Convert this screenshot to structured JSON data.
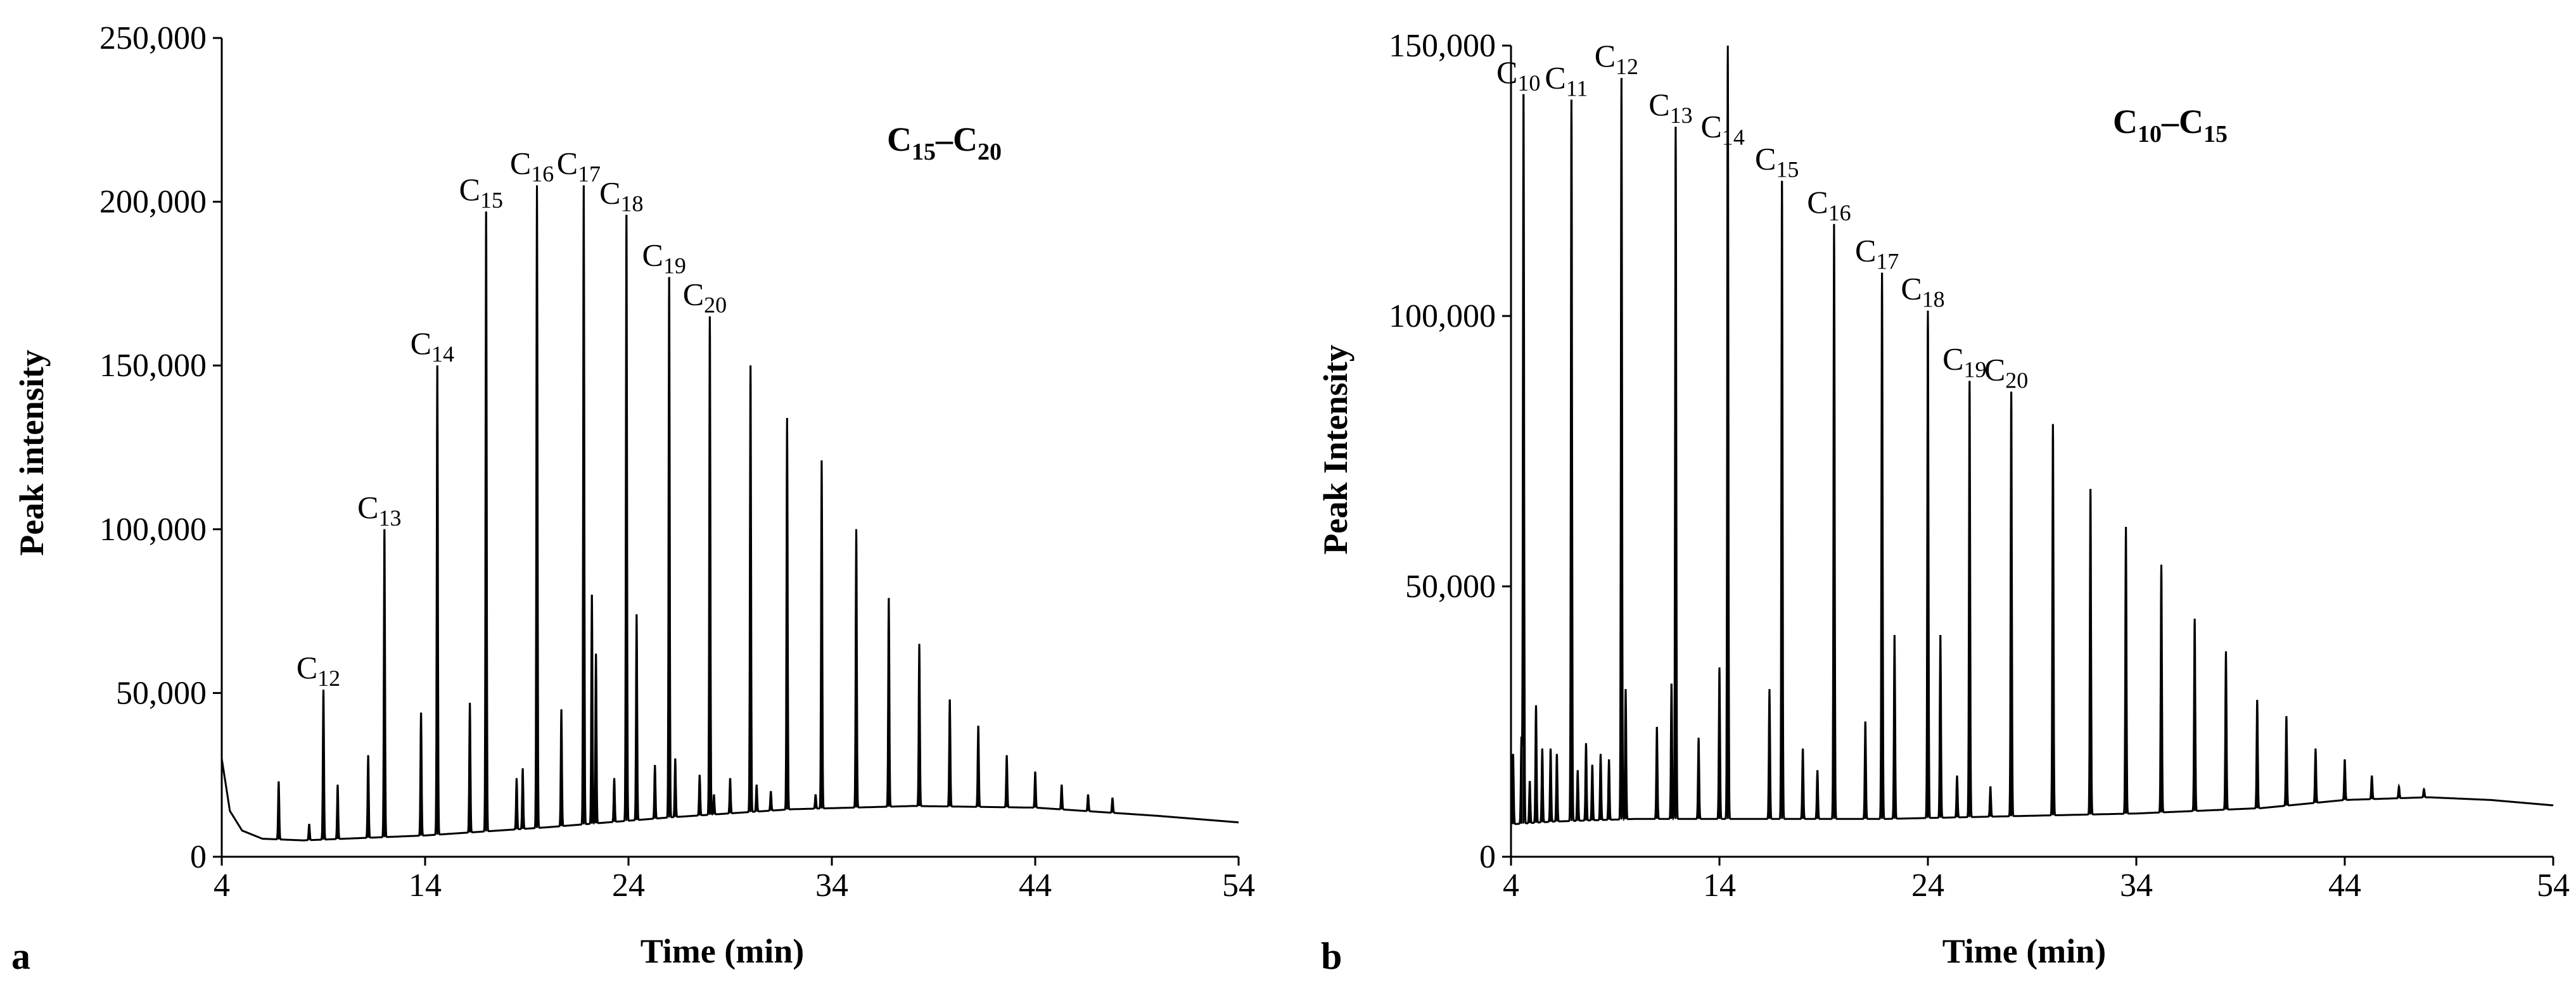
{
  "chart_data": [
    {
      "type": "line",
      "panel_label": "a",
      "xlabel": "Time (min)",
      "ylabel": "Peak intensity",
      "xlim": [
        4,
        54
      ],
      "ylim": [
        0,
        250000
      ],
      "x_ticks": [
        "4",
        "14",
        "24",
        "34",
        "44",
        "54"
      ],
      "y_ticks": [
        "0",
        "50,000",
        "100,000",
        "150,000",
        "200,000",
        "250,000"
      ],
      "annotation": {
        "text": "C",
        "sub1": "15",
        "dash": "–",
        "text2": "C",
        "sub2": "20"
      },
      "baseline": [
        [
          4,
          30000
        ],
        [
          4.4,
          14000
        ],
        [
          5,
          8000
        ],
        [
          6,
          5500
        ],
        [
          8,
          5000
        ],
        [
          10,
          5500
        ],
        [
          14,
          6500
        ],
        [
          20,
          9000
        ],
        [
          26,
          12000
        ],
        [
          32,
          14500
        ],
        [
          38,
          15500
        ],
        [
          44,
          15000
        ],
        [
          50,
          12500
        ],
        [
          54,
          10500
        ]
      ],
      "peaks": [
        {
          "x": 6.8,
          "y": 23000
        },
        {
          "x": 8.3,
          "y": 10000
        },
        {
          "x": 9.7,
          "y": 22000
        },
        {
          "x": 11.2,
          "y": 31000
        },
        {
          "x": 13.8,
          "y": 44000
        },
        {
          "x": 16.2,
          "y": 47000
        },
        {
          "x": 18.5,
          "y": 24000
        },
        {
          "x": 18.8,
          "y": 27000
        },
        {
          "x": 20.7,
          "y": 45000
        },
        {
          "x": 22.2,
          "y": 80000
        },
        {
          "x": 22.4,
          "y": 62000
        },
        {
          "x": 23.3,
          "y": 24000
        },
        {
          "x": 24.4,
          "y": 74000
        },
        {
          "x": 25.3,
          "y": 28000
        },
        {
          "x": 26.3,
          "y": 30000
        },
        {
          "x": 27.5,
          "y": 25000
        },
        {
          "x": 29.0,
          "y": 24000
        },
        {
          "x": 30.3,
          "y": 22000
        },
        {
          "x": 28.2,
          "y": 19000
        },
        {
          "x": 31.0,
          "y": 20000
        },
        {
          "x": 33.2,
          "y": 19000
        },
        {
          "x": 9.0,
          "y": 51000
        },
        {
          "x": 12.0,
          "y": 100000
        },
        {
          "x": 14.6,
          "y": 150000
        },
        {
          "x": 17.0,
          "y": 197000
        },
        {
          "x": 19.5,
          "y": 205000
        },
        {
          "x": 21.8,
          "y": 205000
        },
        {
          "x": 23.9,
          "y": 196000
        },
        {
          "x": 26.0,
          "y": 177000
        },
        {
          "x": 28.0,
          "y": 165000
        },
        {
          "x": 30.0,
          "y": 150000
        },
        {
          "x": 31.8,
          "y": 134000
        },
        {
          "x": 33.5,
          "y": 121000
        },
        {
          "x": 35.2,
          "y": 100000
        },
        {
          "x": 36.8,
          "y": 79000
        },
        {
          "x": 38.3,
          "y": 65000
        },
        {
          "x": 39.8,
          "y": 48000
        },
        {
          "x": 41.2,
          "y": 40000
        },
        {
          "x": 42.6,
          "y": 31000
        },
        {
          "x": 44.0,
          "y": 26000
        },
        {
          "x": 45.3,
          "y": 22000
        },
        {
          "x": 46.6,
          "y": 19000
        },
        {
          "x": 47.8,
          "y": 18000
        }
      ],
      "labeled_peaks": [
        {
          "x": 9.0,
          "y": 51000,
          "label": "C",
          "sub": "12"
        },
        {
          "x": 12.0,
          "y": 100000,
          "label": "C",
          "sub": "13"
        },
        {
          "x": 14.6,
          "y": 150000,
          "label": "C",
          "sub": "14"
        },
        {
          "x": 17.0,
          "y": 197000,
          "label": "C",
          "sub": "15"
        },
        {
          "x": 19.5,
          "y": 205000,
          "label": "C",
          "sub": "16"
        },
        {
          "x": 21.8,
          "y": 205000,
          "label": "C",
          "sub": "17"
        },
        {
          "x": 23.9,
          "y": 196000,
          "label": "C",
          "sub": "18"
        },
        {
          "x": 26.0,
          "y": 177000,
          "label": "C",
          "sub": "19"
        },
        {
          "x": 28.0,
          "y": 165000,
          "label": "C",
          "sub": "20"
        }
      ]
    },
    {
      "type": "line",
      "panel_label": "b",
      "xlabel": "Time (min)",
      "ylabel": "Peak Intensity",
      "xlim": [
        4,
        54
      ],
      "ylim": [
        0,
        150000
      ],
      "x_ticks": [
        "4",
        "14",
        "24",
        "34",
        "44",
        "54"
      ],
      "y_ticks": [
        "0",
        "50,000",
        "100,000",
        "150,000"
      ],
      "annotation": {
        "text": "C",
        "sub1": "10",
        "dash": "–",
        "text2": "C",
        "sub2": "15"
      },
      "baseline": [
        [
          4,
          6000
        ],
        [
          6,
          6500
        ],
        [
          10,
          7000
        ],
        [
          16,
          7000
        ],
        [
          22,
          7000
        ],
        [
          28,
          7500
        ],
        [
          34,
          8000
        ],
        [
          40,
          9000
        ],
        [
          44,
          10500
        ],
        [
          48,
          11000
        ],
        [
          51,
          10500
        ],
        [
          54,
          9500
        ]
      ],
      "peaks": [
        {
          "x": 4.1,
          "y": 19000
        },
        {
          "x": 4.5,
          "y": 22000
        },
        {
          "x": 4.9,
          "y": 14000
        },
        {
          "x": 5.2,
          "y": 28000
        },
        {
          "x": 5.5,
          "y": 20000
        },
        {
          "x": 5.9,
          "y": 20000
        },
        {
          "x": 6.2,
          "y": 19000
        },
        {
          "x": 7.2,
          "y": 16000
        },
        {
          "x": 7.6,
          "y": 21000
        },
        {
          "x": 7.9,
          "y": 17000
        },
        {
          "x": 8.3,
          "y": 19000
        },
        {
          "x": 8.7,
          "y": 18000
        },
        {
          "x": 9.5,
          "y": 31000
        },
        {
          "x": 11.0,
          "y": 24000
        },
        {
          "x": 11.7,
          "y": 32000
        },
        {
          "x": 13.0,
          "y": 22000
        },
        {
          "x": 14.0,
          "y": 35000
        },
        {
          "x": 14.4,
          "y": 28000
        },
        {
          "x": 16.4,
          "y": 31000
        },
        {
          "x": 18.0,
          "y": 20000
        },
        {
          "x": 18.7,
          "y": 16000
        },
        {
          "x": 21.0,
          "y": 25000
        },
        {
          "x": 22.4,
          "y": 41000
        },
        {
          "x": 24.6,
          "y": 41000
        },
        {
          "x": 25.4,
          "y": 15000
        },
        {
          "x": 27.0,
          "y": 13000
        },
        {
          "x": 4.6,
          "y": 141000
        },
        {
          "x": 6.9,
          "y": 140000
        },
        {
          "x": 9.3,
          "y": 144000
        },
        {
          "x": 11.9,
          "y": 135000
        },
        {
          "x": 14.4,
          "y": 131000
        },
        {
          "x": 17.0,
          "y": 125000
        },
        {
          "x": 19.5,
          "y": 117000
        },
        {
          "x": 21.8,
          "y": 108000
        },
        {
          "x": 24.0,
          "y": 101000
        },
        {
          "x": 26.0,
          "y": 88000
        },
        {
          "x": 28.0,
          "y": 86000
        },
        {
          "x": 30.0,
          "y": 80000
        },
        {
          "x": 31.8,
          "y": 68000
        },
        {
          "x": 33.5,
          "y": 61000
        },
        {
          "x": 35.2,
          "y": 54000
        },
        {
          "x": 36.8,
          "y": 44000
        },
        {
          "x": 38.3,
          "y": 38000
        },
        {
          "x": 39.8,
          "y": 29000
        },
        {
          "x": 41.2,
          "y": 26000
        },
        {
          "x": 42.6,
          "y": 20000
        },
        {
          "x": 44.0,
          "y": 18000
        },
        {
          "x": 45.3,
          "y": 15000
        },
        {
          "x": 46.6,
          "y": 13000
        },
        {
          "x": 47.8,
          "y": 12500
        }
      ],
      "labeled_peaks": [
        {
          "x": 4.6,
          "y": 141000,
          "label": "C",
          "sub": "10"
        },
        {
          "x": 6.9,
          "y": 140000,
          "label": "C",
          "sub": "11"
        },
        {
          "x": 9.3,
          "y": 144000,
          "label": "C",
          "sub": "12"
        },
        {
          "x": 11.9,
          "y": 135000,
          "label": "C",
          "sub": "13"
        },
        {
          "x": 14.4,
          "y": 131000,
          "label": "C",
          "sub": "14"
        },
        {
          "x": 17.0,
          "y": 125000,
          "label": "C",
          "sub": "15"
        },
        {
          "x": 19.5,
          "y": 117000,
          "label": "C",
          "sub": "16"
        },
        {
          "x": 21.8,
          "y": 108000,
          "label": "C",
          "sub": "17"
        },
        {
          "x": 24.0,
          "y": 101000,
          "label": "C",
          "sub": "18"
        },
        {
          "x": 26.0,
          "y": 88000,
          "label": "C",
          "sub": "19"
        },
        {
          "x": 28.0,
          "y": 86000,
          "label": "C",
          "sub": "20"
        }
      ]
    }
  ]
}
